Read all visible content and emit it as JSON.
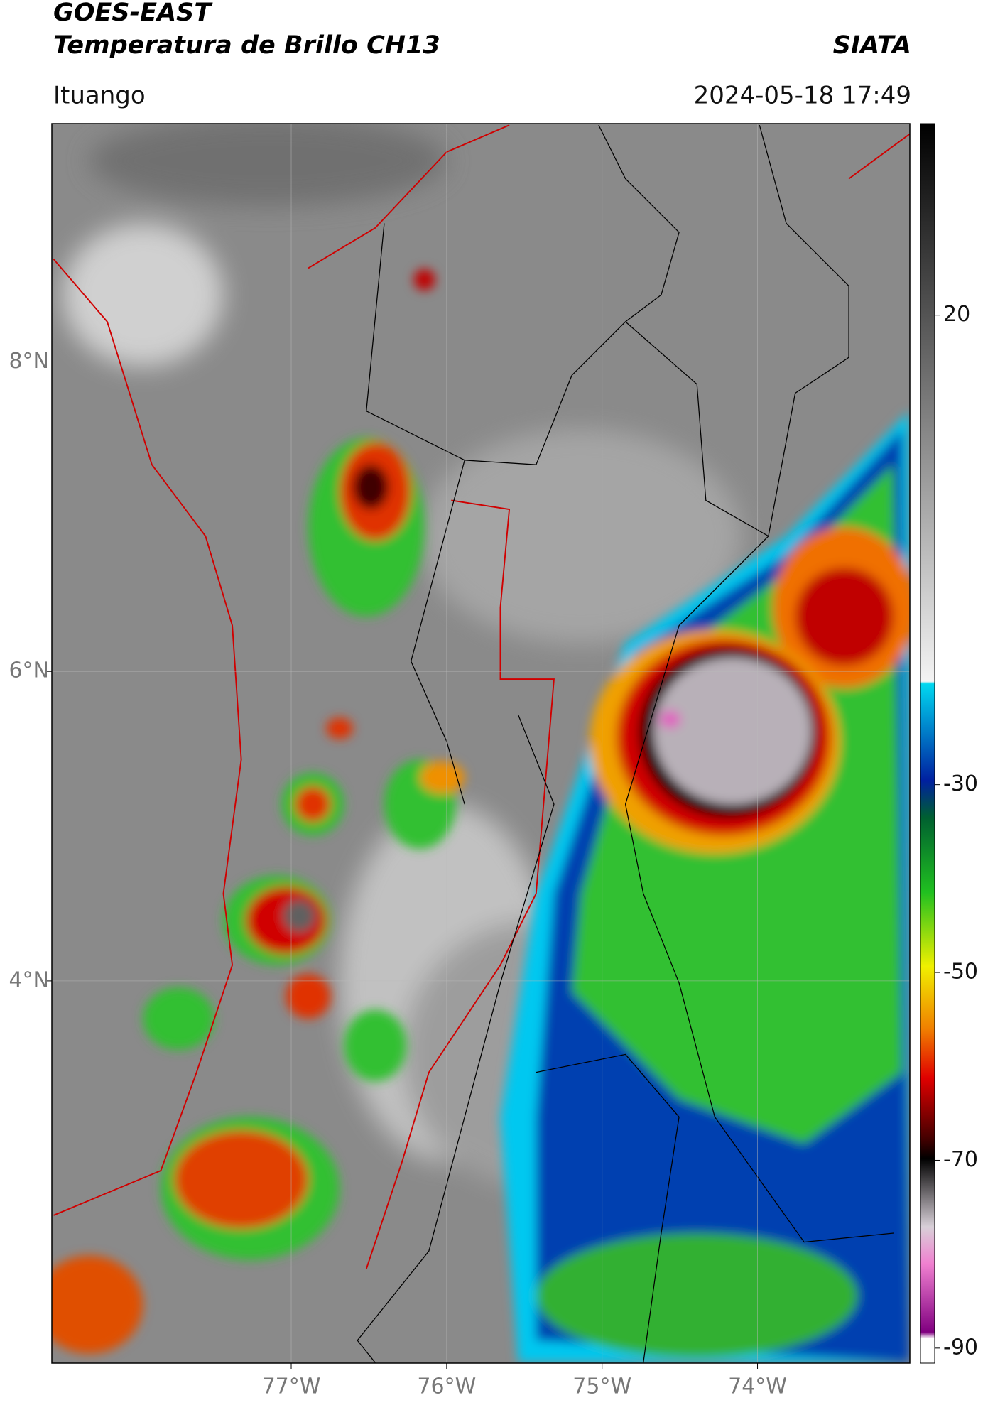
{
  "chart_data": {
    "type": "map",
    "title": "GOES-EAST",
    "subtitle": "Temperatura de Brillo CH13",
    "source": "SIATA",
    "location": "Ituango",
    "datetime": "2024-05-18 17:49",
    "xlim": [
      -78.54,
      -73.02
    ],
    "ylim": [
      1.53,
      9.54
    ],
    "xticks": [
      {
        "value": -77,
        "label": "77°W"
      },
      {
        "value": -76,
        "label": "76°W"
      },
      {
        "value": -75,
        "label": "75°W"
      },
      {
        "value": -74,
        "label": "74°W"
      }
    ],
    "yticks": [
      {
        "value": 8,
        "label": "8°N"
      },
      {
        "value": 6,
        "label": "6°N"
      },
      {
        "value": 4,
        "label": "4°N"
      }
    ],
    "grid": true,
    "colorbar_lim": [
      -91.6,
      40.4
    ],
    "colorbar_ticks": [
      20,
      -30,
      -50,
      -70,
      -90
    ]
  }
}
